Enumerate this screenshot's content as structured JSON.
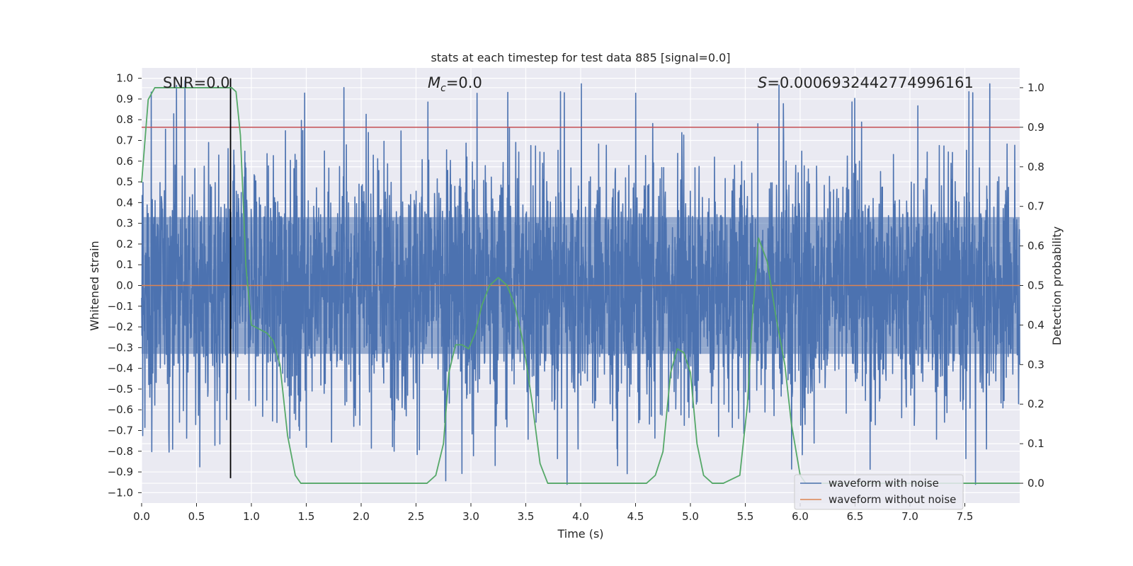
{
  "chart_data": {
    "type": "line",
    "title": "stats at each timestep for test data 885 [signal=0.0]",
    "xlabel": "Time (s)",
    "ylabel": "Whitened strain",
    "y2label": "Detection probability",
    "xlim": [
      0.0,
      8.0
    ],
    "ylim": [
      -1.05,
      1.05
    ],
    "y2lim": [
      -0.05,
      1.05
    ],
    "xticks": [
      "0.0",
      "0.5",
      "1.0",
      "1.5",
      "2.0",
      "2.5",
      "3.0",
      "3.5",
      "4.0",
      "4.5",
      "5.0",
      "5.5",
      "6.0",
      "6.5",
      "7.0",
      "7.5"
    ],
    "yticks": [
      "1.0",
      "0.9",
      "0.8",
      "0.7",
      "0.6",
      "0.5",
      "0.4",
      "0.3",
      "0.2",
      "0.1",
      "0.0",
      "−0.1",
      "−0.2",
      "−0.3",
      "−0.4",
      "−0.5",
      "−0.6",
      "−0.7",
      "−0.8",
      "−0.9",
      "−1.0"
    ],
    "y2ticks": [
      "1.0",
      "0.9",
      "0.8",
      "0.7",
      "0.6",
      "0.5",
      "0.4",
      "0.3",
      "0.2",
      "0.1",
      "0.0"
    ],
    "annotations": {
      "snr_label": "SNR=0.0",
      "mc_symbol": "M",
      "mc_sub": "c",
      "mc_value": "=0.0",
      "s_symbol": "S",
      "s_value": "=0.0006932442774996161"
    },
    "threshold": 0.9,
    "marker_time": 0.81,
    "series": [
      {
        "name": "waveform with noise",
        "color": "#4c72b0",
        "typical_amplitude": 0.3,
        "envelope": [
          -1.0,
          1.0
        ]
      },
      {
        "name": "waveform without noise",
        "color": "#dd8452",
        "value": 0.0
      },
      {
        "name": "detection probability",
        "color": "#55a868",
        "x": [
          0.0,
          0.06,
          0.12,
          0.2,
          0.3,
          0.4,
          0.5,
          0.6,
          0.7,
          0.76,
          0.82,
          0.86,
          0.9,
          0.95,
          1.0,
          1.07,
          1.14,
          1.2,
          1.26,
          1.33,
          1.4,
          1.45,
          1.6,
          2.0,
          2.5,
          2.6,
          2.68,
          2.75,
          2.8,
          2.86,
          2.92,
          2.98,
          3.04,
          3.1,
          3.17,
          3.25,
          3.33,
          3.4,
          3.48,
          3.56,
          3.63,
          3.7,
          3.8,
          4.2,
          4.6,
          4.68,
          4.75,
          4.82,
          4.88,
          4.94,
          5.0,
          5.06,
          5.12,
          5.2,
          5.3,
          5.45,
          5.52,
          5.56,
          5.62,
          5.7,
          5.78,
          5.86,
          5.92,
          6.0,
          6.05,
          6.5,
          7.0,
          7.5,
          8.0
        ],
        "values": [
          0.76,
          0.97,
          1.0,
          1.0,
          1.0,
          1.0,
          1.0,
          1.0,
          1.0,
          1.0,
          1.0,
          0.99,
          0.88,
          0.55,
          0.4,
          0.39,
          0.38,
          0.36,
          0.3,
          0.12,
          0.02,
          0.0,
          0.0,
          0.0,
          0.0,
          0.0,
          0.02,
          0.1,
          0.28,
          0.35,
          0.35,
          0.34,
          0.38,
          0.45,
          0.5,
          0.52,
          0.5,
          0.45,
          0.35,
          0.2,
          0.05,
          0.0,
          0.0,
          0.0,
          0.0,
          0.02,
          0.08,
          0.28,
          0.34,
          0.33,
          0.28,
          0.1,
          0.02,
          0.0,
          0.0,
          0.02,
          0.2,
          0.4,
          0.62,
          0.56,
          0.42,
          0.3,
          0.15,
          0.02,
          0.0,
          0.0,
          0.0,
          0.0,
          0.0
        ]
      },
      {
        "name": "threshold",
        "color": "#c44e52"
      },
      {
        "name": "marker",
        "color": "#000000"
      }
    ],
    "legend": {
      "placement": "lower-right",
      "entries": [
        "waveform with noise",
        "waveform without noise"
      ]
    },
    "grid": true
  }
}
